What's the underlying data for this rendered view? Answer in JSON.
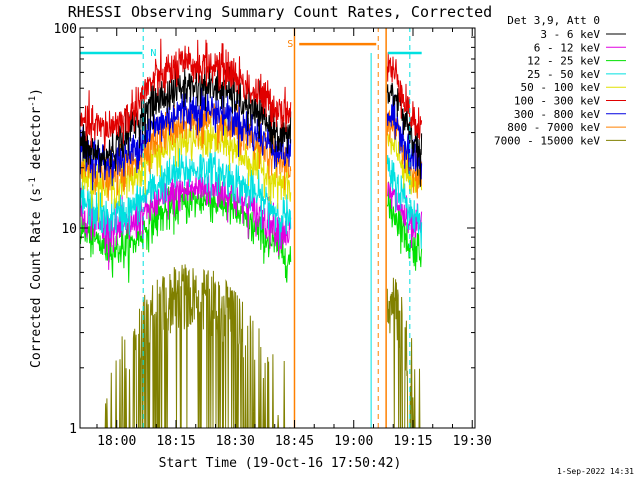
{
  "chart_data": {
    "type": "line",
    "title": "RHESSI Observing Summary Count Rates, Corrected",
    "xlabel": "Start Time (19-Oct-16 17:50:42)",
    "ylabel_main": "Corrected Count Rate (s",
    "ylabel_sup1": "-1",
    "ylabel_mid": " detector",
    "ylabel_sup2": "-1",
    "ylabel_end": ")",
    "yscale": "log",
    "ylim": [
      1,
      100
    ],
    "xlim_minutes": [
      0,
      100
    ],
    "x_ticks": [
      {
        "label": "18:00",
        "minute": 9.3
      },
      {
        "label": "18:15",
        "minute": 24.3
      },
      {
        "label": "18:30",
        "minute": 39.3
      },
      {
        "label": "18:45",
        "minute": 54.3
      },
      {
        "label": "19:00",
        "minute": 69.3
      },
      {
        "label": "19:15",
        "minute": 84.3
      },
      {
        "label": "19:30",
        "minute": 99.3
      }
    ],
    "y_ticks": [
      {
        "label": "1",
        "value": 1
      },
      {
        "label": "10",
        "value": 10
      },
      {
        "label": "100",
        "value": 100
      }
    ],
    "legend_header": "Det 3,9, Att 0",
    "legend_placement": "right",
    "series": [
      {
        "name": "3 - 6 keV",
        "color": "#000000",
        "profile": [
          26,
          22,
          30,
          42,
          50,
          52,
          48,
          38,
          30,
          25
        ]
      },
      {
        "name": "6 - 12 keV",
        "color": "#e000e0",
        "profile": [
          12,
          10,
          10,
          13,
          15,
          16,
          15,
          12,
          10,
          9
        ]
      },
      {
        "name": "12 - 25 keV",
        "color": "#00e000",
        "profile": [
          10,
          8,
          8,
          11,
          13,
          14,
          13,
          10,
          8,
          6
        ]
      },
      {
        "name": "25 - 50 keV",
        "color": "#00e0e0",
        "profile": [
          14,
          11,
          12,
          16,
          19,
          20,
          18,
          15,
          12,
          10
        ]
      },
      {
        "name": "50 - 100 keV",
        "color": "#e0e000",
        "profile": [
          19,
          16,
          17,
          23,
          27,
          28,
          26,
          21,
          17,
          15
        ]
      },
      {
        "name": "100 - 300 keV",
        "color": "#e00000",
        "profile": [
          34,
          31,
          36,
          55,
          64,
          66,
          62,
          48,
          40,
          36
        ]
      },
      {
        "name": "300 - 800 keV",
        "color": "#0000e0",
        "profile": [
          25,
          21,
          23,
          32,
          38,
          40,
          37,
          30,
          25,
          22
        ]
      },
      {
        "name": "800 - 7000 keV",
        "color": "#ff8000",
        "profile": [
          21,
          18,
          20,
          28,
          33,
          34,
          32,
          26,
          22,
          19
        ]
      },
      {
        "name": "7000 - 15000 keV",
        "color": "#808000",
        "profile": [
          1,
          1,
          1.5,
          2.5,
          3,
          3,
          2.6,
          1.6,
          1,
          1
        ]
      }
    ],
    "segments": [
      {
        "start": 0,
        "end": 53.4
      },
      {
        "start": 77.8,
        "end": 86.5
      }
    ],
    "annotations": [
      {
        "label": "N",
        "color": "#00e0e0",
        "x_start": 0,
        "x_end": 15.8,
        "value": 75
      },
      {
        "label": "S",
        "color": "#ff8000",
        "x_start": 55.5,
        "x_end": 75,
        "value": 83
      }
    ],
    "timestamp": "1-Sep-2022 14:31"
  }
}
